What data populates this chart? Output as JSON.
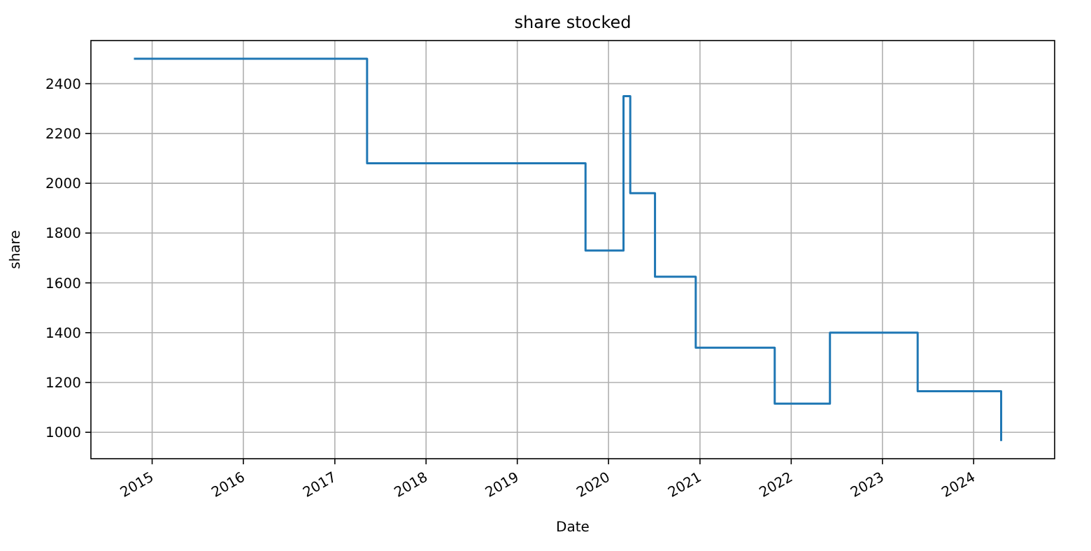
{
  "chart_data": {
    "type": "step",
    "title": "share stocked",
    "xlabel": "Date",
    "ylabel": "share",
    "x": [
      "2014-10-20",
      "2017-05-10",
      "2019-10-01",
      "2020-03-01",
      "2020-03-28",
      "2020-07-05",
      "2020-12-15",
      "2021-10-27",
      "2022-06-05",
      "2023-05-22",
      "2024-04-20"
    ],
    "series": [
      {
        "color": "#1f77b4",
        "values": [
          2500,
          2080,
          1730,
          2350,
          1960,
          1625,
          1340,
          1115,
          1400,
          1165,
          965
        ]
      }
    ],
    "xlim": [
      "2014-05-01",
      "2024-11-20"
    ],
    "xticks": [
      {
        "value": "2015-01-01",
        "label": "2015"
      },
      {
        "value": "2016-01-01",
        "label": "2016"
      },
      {
        "value": "2017-01-01",
        "label": "2017"
      },
      {
        "value": "2018-01-01",
        "label": "2018"
      },
      {
        "value": "2019-01-01",
        "label": "2019"
      },
      {
        "value": "2020-01-01",
        "label": "2020"
      },
      {
        "value": "2021-01-01",
        "label": "2021"
      },
      {
        "value": "2022-01-01",
        "label": "2022"
      },
      {
        "value": "2023-01-01",
        "label": "2023"
      },
      {
        "value": "2024-01-01",
        "label": "2024"
      }
    ],
    "ylim": [
      894,
      2573
    ],
    "yticks": [
      1000,
      1200,
      1400,
      1600,
      1800,
      2000,
      2200,
      2400
    ],
    "grid": true,
    "line_style": "solid"
  }
}
